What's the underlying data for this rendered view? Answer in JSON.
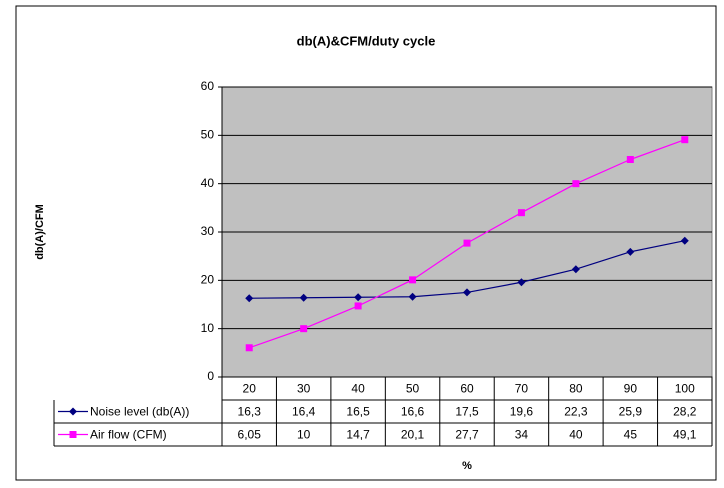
{
  "chart_data": {
    "type": "line",
    "title": "db(A)&CFM/duty cycle",
    "x_label": "%",
    "y_label": "db(A)/CFM",
    "categories": [
      "20",
      "30",
      "40",
      "50",
      "60",
      "70",
      "80",
      "90",
      "100"
    ],
    "series": [
      {
        "name": "Noise level (db(A))",
        "color": "#000080",
        "marker": "diamond",
        "values": [
          16.3,
          16.4,
          16.5,
          16.6,
          17.5,
          19.6,
          22.3,
          25.9,
          28.2
        ],
        "value_labels": [
          "16,3",
          "16,4",
          "16,5",
          "16,6",
          "17,5",
          "19,6",
          "22,3",
          "25,9",
          "28,2"
        ]
      },
      {
        "name": "Air flow (CFM)",
        "color": "#ff00ff",
        "marker": "square",
        "values": [
          6.05,
          10,
          14.7,
          20.1,
          27.7,
          34,
          40,
          45,
          49.1
        ],
        "value_labels": [
          "6,05",
          "10",
          "14,7",
          "20,1",
          "27,7",
          "34",
          "40",
          "45",
          "49,1"
        ]
      }
    ],
    "ylim": [
      0,
      60
    ],
    "yticks": [
      0,
      10,
      20,
      30,
      40,
      50,
      60
    ],
    "grid": true,
    "plot_background": "#c0c0c0"
  }
}
